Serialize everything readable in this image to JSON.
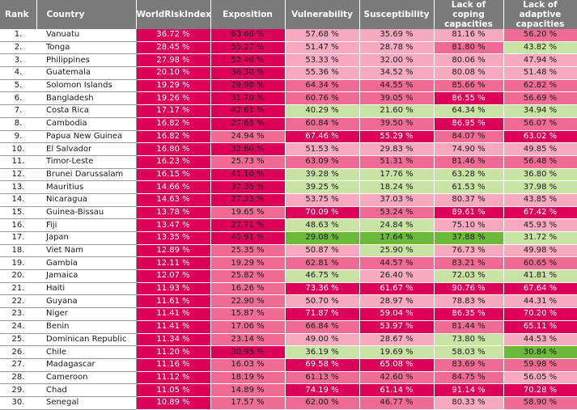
{
  "headers": {
    "rank": "Rank",
    "country": "Country",
    "worldriskindex": "WorldRiskIndex",
    "exposition": "Exposition",
    "vulnerability": "Vulnerability",
    "susceptibility": "Susceptibility",
    "coping": "Lack of coping capacities",
    "adaptive": "Lack of adaptive capacities"
  },
  "rows": [
    {
      "rank": "1.",
      "country": "Vanuatu",
      "wri": "36.72 %",
      "exp": "63.66 %",
      "vul": "57.68 %",
      "sus": "35.69 %",
      "cop": "81.16 %",
      "ada": "56.20 %"
    },
    {
      "rank": "2.",
      "country": "Tonga",
      "wri": "28.45 %",
      "exp": "55.27 %",
      "vul": "51.47 %",
      "sus": "28.78 %",
      "cop": "81.80 %",
      "ada": "43.82 %"
    },
    {
      "rank": "3.",
      "country": "Philippines",
      "wri": "27.98 %",
      "exp": "52.46 %",
      "vul": "53.33 %",
      "sus": "32.00 %",
      "cop": "80.06 %",
      "ada": "47.94 %"
    },
    {
      "rank": "4.",
      "country": "Guatemala",
      "wri": "20.10 %",
      "exp": "36.30 %",
      "vul": "55.36 %",
      "sus": "34.52 %",
      "cop": "80.08 %",
      "ada": "51.48 %"
    },
    {
      "rank": "5.",
      "country": "Solomon Islands",
      "wri": "19.29 %",
      "exp": "29.98 %",
      "vul": "64.34 %",
      "sus": "44.55 %",
      "cop": "85.66 %",
      "ada": "62.82 %"
    },
    {
      "rank": "6.",
      "country": "Bangladesh",
      "wri": "19.26 %",
      "exp": "31.70 %",
      "vul": "60.76 %",
      "sus": "39.05 %",
      "cop": "86.55 %",
      "ada": "56.69 %"
    },
    {
      "rank": "7.",
      "country": "Costa Rica",
      "wri": "17.17 %",
      "exp": "42.61 %",
      "vul": "40.29 %",
      "sus": "21.60 %",
      "cop": "64.34 %",
      "ada": "34.94 %"
    },
    {
      "rank": "8.",
      "country": "Cambodia",
      "wri": "16.82 %",
      "exp": "27.65 %",
      "vul": "60.84 %",
      "sus": "39.50 %",
      "cop": "86.95 %",
      "ada": "56.07 %"
    },
    {
      "rank": "9.",
      "country": "Papua New Guinea",
      "wri": "16.82 %",
      "exp": "24.94 %",
      "vul": "67.46 %",
      "sus": "55.29 %",
      "cop": "84.07 %",
      "ada": "63.02 %"
    },
    {
      "rank": "10.",
      "country": "El Salvador",
      "wri": "16.80 %",
      "exp": "32.60 %",
      "vul": "51.53 %",
      "sus": "29.83 %",
      "cop": "74.90 %",
      "ada": "49.85 %"
    },
    {
      "rank": "11.",
      "country": "Timor-Leste",
      "wri": "16.23 %",
      "exp": "25.73 %",
      "vul": "63.09 %",
      "sus": "51.31 %",
      "cop": "81.46 %",
      "ada": "56.48 %"
    },
    {
      "rank": "12.",
      "country": "Brunei Darussalam",
      "wri": "16.15 %",
      "exp": "41.10 %",
      "vul": "39.28 %",
      "sus": "17.76 %",
      "cop": "63.28 %",
      "ada": "36.80 %"
    },
    {
      "rank": "13.",
      "country": "Mauritius",
      "wri": "14.66 %",
      "exp": "37.35 %",
      "vul": "39.25 %",
      "sus": "18.24 %",
      "cop": "61.53 %",
      "ada": "37.98 %"
    },
    {
      "rank": "14.",
      "country": "Nicaragua",
      "wri": "14.63 %",
      "exp": "27.23 %",
      "vul": "53.75 %",
      "sus": "37.03 %",
      "cop": "80.37 %",
      "ada": "43.85 %"
    },
    {
      "rank": "15.",
      "country": "Guinea-Bissau",
      "wri": "13.78 %",
      "exp": "19.65 %",
      "vul": "70.09 %",
      "sus": "53.24 %",
      "cop": "89.61 %",
      "ada": "67.42 %"
    },
    {
      "rank": "16.",
      "country": "Fiji",
      "wri": "13.47 %",
      "exp": "27.71 %",
      "vul": "48.63 %",
      "sus": "24.84 %",
      "cop": "75.10 %",
      "ada": "45.93 %"
    },
    {
      "rank": "17.",
      "country": "Japan",
      "wri": "13.35 %",
      "exp": "45.91 %",
      "vul": "29.08 %",
      "sus": "17.64 %",
      "cop": "37.88 %",
      "ada": "31.72 %"
    },
    {
      "rank": "18.",
      "country": "Viet Nam",
      "wri": "12.89 %",
      "exp": "25.35 %",
      "vul": "50.87 %",
      "sus": "25.90 %",
      "cop": "76.73 %",
      "ada": "49.98 %"
    },
    {
      "rank": "19.",
      "country": "Gambia",
      "wri": "12.11 %",
      "exp": "19.29 %",
      "vul": "62.81 %",
      "sus": "44.57 %",
      "cop": "83.21 %",
      "ada": "60.65 %"
    },
    {
      "rank": "20.",
      "country": "Jamaica",
      "wri": "12.07 %",
      "exp": "25.82 %",
      "vul": "46.75 %",
      "sus": "26.40 %",
      "cop": "72.03 %",
      "ada": "41.81 %"
    },
    {
      "rank": "21.",
      "country": "Haiti",
      "wri": "11.93 %",
      "exp": "16.26 %",
      "vul": "73.36 %",
      "sus": "61.67 %",
      "cop": "90.76 %",
      "ada": "67.64 %"
    },
    {
      "rank": "22.",
      "country": "Guyana",
      "wri": "11.61 %",
      "exp": "22.90 %",
      "vul": "50.70 %",
      "sus": "28.97 %",
      "cop": "78.83 %",
      "ada": "44.31 %"
    },
    {
      "rank": "23.",
      "country": "Niger",
      "wri": "11.41 %",
      "exp": "15.87 %",
      "vul": "71.87 %",
      "sus": "59.04 %",
      "cop": "86.35 %",
      "ada": "70.20 %"
    },
    {
      "rank": "24.",
      "country": "Benin",
      "wri": "11.41 %",
      "exp": "17.06 %",
      "vul": "66.84 %",
      "sus": "53.97 %",
      "cop": "81.44 %",
      "ada": "65.11 %"
    },
    {
      "rank": "25.",
      "country": "Dominican Republic",
      "wri": "11.34 %",
      "exp": "23.14 %",
      "vul": "49.00 %",
      "sus": "28.67 %",
      "cop": "73.80 %",
      "ada": "44.53 %"
    },
    {
      "rank": "26.",
      "country": "Chile",
      "wri": "11.20 %",
      "exp": "30.95 %",
      "vul": "36.19 %",
      "sus": "19.69 %",
      "cop": "58.03 %",
      "ada": "30.84 %"
    },
    {
      "rank": "27.",
      "country": "Madagascar",
      "wri": "11.16 %",
      "exp": "16.03 %",
      "vul": "69.58 %",
      "sus": "65.08 %",
      "cop": "83.69 %",
      "ada": "59.98 %"
    },
    {
      "rank": "28.",
      "country": "Cameroon",
      "wri": "11.12 %",
      "exp": "18.19 %",
      "vul": "61.13 %",
      "sus": "42.60 %",
      "cop": "84.75 %",
      "ada": "56.05 %"
    },
    {
      "rank": "29.",
      "country": "Chad",
      "wri": "11.05 %",
      "exp": "14.89 %",
      "vul": "74.19 %",
      "sus": "61.14 %",
      "cop": "91.14 %",
      "ada": "70.28 %"
    },
    {
      "rank": "30.",
      "country": "Senegal",
      "wri": "10.89 %",
      "exp": "17.57 %",
      "vul": "62.00 %",
      "sus": "46.77 %",
      "cop": "80.33 %",
      "ada": "58.90 %"
    }
  ]
}
